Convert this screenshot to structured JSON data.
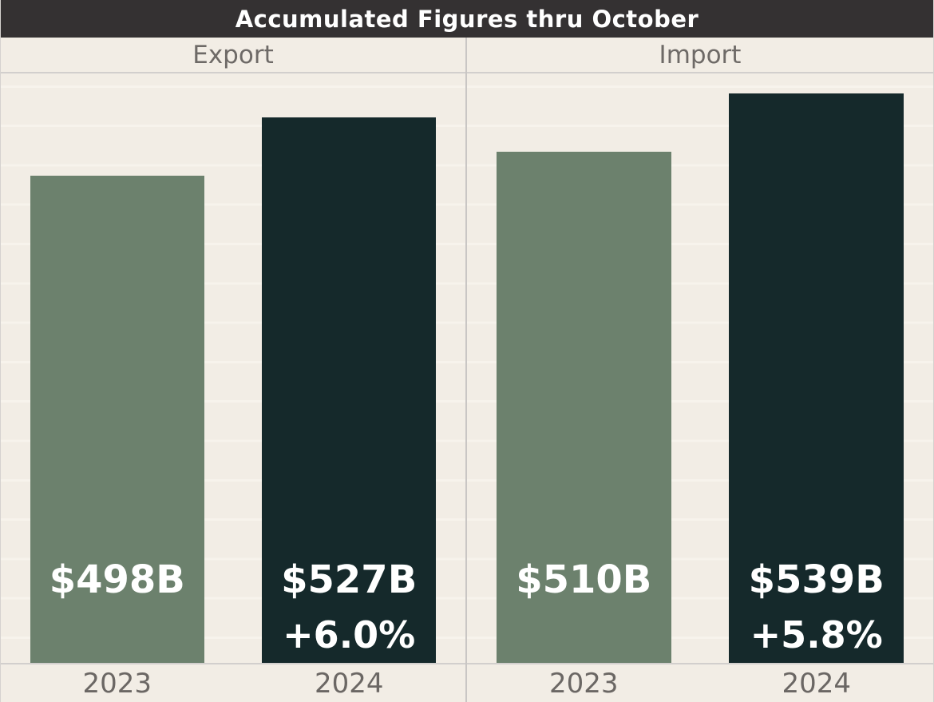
{
  "chart_data": {
    "type": "bar",
    "title": "Accumulated Figures thru October",
    "categories": [
      "2023",
      "2024"
    ],
    "panels": [
      {
        "label": "Export",
        "values": [
          498,
          527
        ],
        "bar_labels": [
          "$498B",
          "$527B"
        ],
        "change_label": "+6.0%"
      },
      {
        "label": "Import",
        "values": [
          510,
          539
        ],
        "bar_labels": [
          "$510B",
          "$539B"
        ],
        "change_label": "+5.8%"
      }
    ],
    "ylim": [
      255,
      549
    ],
    "grid": "faint horizontal gridlines, spacing ~20 units",
    "legend": "none"
  },
  "colors": {
    "background": "#f2ede5",
    "gridline": "#f7f3ec",
    "bar_2023": "#6c816d",
    "bar_2024": "#15292b",
    "bar_label_text": "#ffffff",
    "title_bg": "#343132",
    "title_text": "#ffffff",
    "header_text": "#6e6a67",
    "tick_text": "#6b6764",
    "axis_line": "#d2cfcd",
    "divider": "#c9c6c4",
    "outer_border": "#d5d2cf"
  }
}
